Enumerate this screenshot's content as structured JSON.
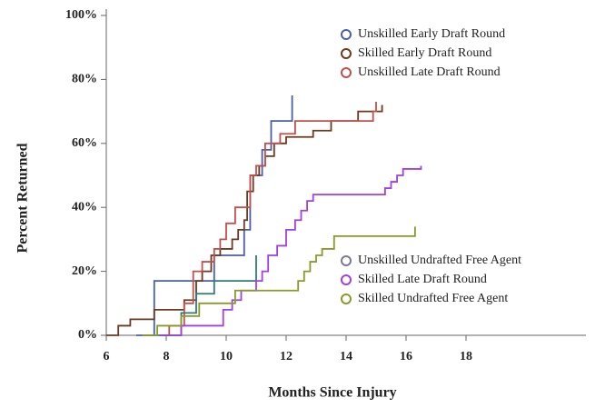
{
  "chart_data": {
    "type": "step",
    "xlabel": "Months Since Injury",
    "ylabel": "Percent Returned",
    "xlim": [
      6,
      22
    ],
    "xticks": [
      6,
      8,
      10,
      12,
      14,
      16,
      18
    ],
    "ylim": [
      0,
      100
    ],
    "yticks": [
      {
        "value": 0,
        "label": "0%"
      },
      {
        "value": 20,
        "label": "20%"
      },
      {
        "value": 40,
        "label": "40%"
      },
      {
        "value": 60,
        "label": "60%"
      },
      {
        "value": 80,
        "label": "80%"
      },
      {
        "value": 100,
        "label": "100%"
      }
    ],
    "series": [
      {
        "name": "Unskilled Early Draft  Round",
        "color": "#4a5fa8",
        "x": [
          7.0,
          7.6,
          9.6,
          10.6,
          10.8,
          11.2,
          11.5,
          12.2
        ],
        "values": [
          0,
          17,
          25,
          33,
          50,
          58,
          67,
          75
        ]
      },
      {
        "name": "Skilled Early Draft  Round",
        "color": "#6b3a1f",
        "x": [
          6.0,
          6.4,
          6.8,
          7.6,
          8.6,
          9.0,
          9.2,
          9.5,
          9.8,
          10.2,
          10.4,
          10.6,
          10.7,
          10.9,
          11.1,
          11.3,
          11.6,
          12.0,
          12.9,
          13.5,
          14.4,
          15.2
        ],
        "values": [
          0,
          3,
          5,
          8,
          11,
          17,
          20,
          25,
          27,
          30,
          33,
          36,
          45,
          50,
          53,
          56,
          60,
          62,
          64,
          67,
          70,
          72
        ]
      },
      {
        "name": "Unskilled Late Draft Round",
        "color": "#c0504d",
        "x": [
          7.8,
          8.1,
          8.6,
          8.9,
          9.2,
          9.6,
          9.8,
          10.0,
          10.3,
          10.8,
          11.0,
          11.3,
          11.8,
          12.3,
          14.9,
          15.0
        ],
        "values": [
          0,
          3,
          10,
          20,
          23,
          27,
          30,
          35,
          40,
          50,
          53,
          60,
          63,
          67,
          70,
          73
        ]
      },
      {
        "name": "Unskilled Undrafted Free Agent",
        "color": "#2f7a78",
        "x": [
          7.5,
          8.5,
          9.0,
          9.6,
          11.0
        ],
        "values": [
          0,
          7,
          13,
          17,
          25
        ]
      },
      {
        "name": "Skilled Late Draft  Round",
        "color": "#a040e0",
        "x": [
          7.8,
          8.5,
          9.9,
          10.2,
          10.5,
          11.0,
          11.2,
          11.4,
          11.7,
          12.0,
          12.3,
          12.5,
          12.7,
          12.9,
          15.3,
          15.5,
          15.7,
          15.9,
          16.5
        ],
        "values": [
          0,
          3,
          8,
          11,
          14,
          17,
          20,
          25,
          28,
          33,
          36,
          39,
          42,
          44,
          46,
          48,
          50,
          52,
          53
        ]
      },
      {
        "name": "Skilled Undrafted Free Agent",
        "color": "#8a9a2a",
        "x": [
          7.2,
          7.7,
          8.5,
          9.1,
          10.3,
          12.4,
          12.6,
          12.8,
          13.0,
          13.2,
          13.6,
          16.3
        ],
        "values": [
          0,
          3,
          6,
          10,
          14,
          17,
          20,
          23,
          25,
          27,
          31,
          34
        ]
      }
    ]
  }
}
